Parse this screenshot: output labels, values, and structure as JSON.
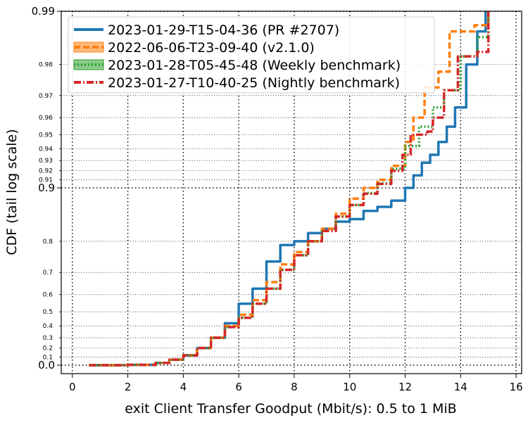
{
  "chart_data": {
    "type": "line",
    "subtype": "cdf-tail-log-scale",
    "xlabel": "exit Client Transfer Goodput (Mbit/s): 0.5 to 1 MiB",
    "ylabel": "CDF (tail log scale)",
    "xlim": [
      -0.4,
      16.2
    ],
    "x_ticks": [
      0,
      2,
      4,
      6,
      8,
      10,
      12,
      14,
      16
    ],
    "y_scale": "tail-log",
    "ylim": [
      -0.02,
      0.99
    ],
    "y_major_ticks": [
      {
        "value": 0.0,
        "label": "0.0"
      },
      {
        "value": 0.9,
        "label": "0.9"
      },
      {
        "value": 0.99,
        "label": "0.99"
      }
    ],
    "y_minor_ticks": [
      {
        "value": 0.1,
        "label": "0.1"
      },
      {
        "value": 0.2,
        "label": "0.2"
      },
      {
        "value": 0.3,
        "label": "0.3"
      },
      {
        "value": 0.4,
        "label": "0.4"
      },
      {
        "value": 0.5,
        "label": "0.5"
      },
      {
        "value": 0.6,
        "label": "0.6"
      },
      {
        "value": 0.7,
        "label": "0.7"
      },
      {
        "value": 0.8,
        "label": "0.8"
      },
      {
        "value": 0.91,
        "label": "0.91"
      },
      {
        "value": 0.92,
        "label": "0.92"
      },
      {
        "value": 0.93,
        "label": "0.93"
      },
      {
        "value": 0.94,
        "label": "0.94"
      },
      {
        "value": 0.95,
        "label": "0.95"
      },
      {
        "value": 0.96,
        "label": "0.96"
      },
      {
        "value": 0.97,
        "label": "0.97"
      },
      {
        "value": 0.98,
        "label": "0.98"
      }
    ],
    "grid": true,
    "legend_position": "top-left",
    "series": [
      {
        "name": "2023-01-29-T15-04-36 (PR #2707)",
        "color": "#1f77b4",
        "style": "solid",
        "points": [
          [
            0.6,
            0.0
          ],
          [
            2.0,
            0.005
          ],
          [
            3.0,
            0.03
          ],
          [
            3.5,
            0.07
          ],
          [
            4.0,
            0.12
          ],
          [
            4.5,
            0.2
          ],
          [
            5.0,
            0.3
          ],
          [
            5.5,
            0.42
          ],
          [
            6.0,
            0.55
          ],
          [
            6.5,
            0.63
          ],
          [
            7.0,
            0.74
          ],
          [
            7.5,
            0.79
          ],
          [
            8.0,
            0.8
          ],
          [
            8.5,
            0.82
          ],
          [
            9.0,
            0.83
          ],
          [
            9.5,
            0.845
          ],
          [
            10.0,
            0.85
          ],
          [
            10.5,
            0.865
          ],
          [
            11.0,
            0.872
          ],
          [
            11.5,
            0.882
          ],
          [
            12.0,
            0.9
          ],
          [
            12.3,
            0.915
          ],
          [
            12.6,
            0.928
          ],
          [
            12.9,
            0.935
          ],
          [
            13.2,
            0.945
          ],
          [
            13.5,
            0.955
          ],
          [
            13.8,
            0.965
          ],
          [
            14.2,
            0.98
          ],
          [
            14.6,
            0.987
          ],
          [
            14.9,
            0.99
          ]
        ]
      },
      {
        "name": "2022-06-06-T23-09-40 (v2.1.0)",
        "color": "#ff7f0e",
        "style": "dashed",
        "points": [
          [
            0.6,
            0.0
          ],
          [
            2.0,
            0.005
          ],
          [
            3.0,
            0.03
          ],
          [
            3.5,
            0.07
          ],
          [
            4.0,
            0.12
          ],
          [
            4.5,
            0.2
          ],
          [
            5.0,
            0.3
          ],
          [
            5.5,
            0.4
          ],
          [
            6.0,
            0.48
          ],
          [
            6.5,
            0.57
          ],
          [
            7.0,
            0.66
          ],
          [
            7.5,
            0.73
          ],
          [
            8.0,
            0.77
          ],
          [
            8.5,
            0.8
          ],
          [
            9.0,
            0.83
          ],
          [
            9.5,
            0.86
          ],
          [
            10.0,
            0.885
          ],
          [
            10.5,
            0.9
          ],
          [
            11.0,
            0.91
          ],
          [
            11.5,
            0.925
          ],
          [
            12.0,
            0.945
          ],
          [
            12.3,
            0.96
          ],
          [
            12.7,
            0.973
          ],
          [
            13.2,
            0.978
          ],
          [
            13.6,
            0.987
          ],
          [
            14.5,
            0.988
          ],
          [
            15.0,
            0.99
          ]
        ]
      },
      {
        "name": "2023-01-28-T05-45-48 (Weekly benchmark)",
        "color": "#2ca02c",
        "style": "dotted",
        "points": [
          [
            0.6,
            0.0
          ],
          [
            2.0,
            0.005
          ],
          [
            3.0,
            0.03
          ],
          [
            3.5,
            0.07
          ],
          [
            4.0,
            0.12
          ],
          [
            4.5,
            0.2
          ],
          [
            5.0,
            0.3
          ],
          [
            5.5,
            0.39
          ],
          [
            6.0,
            0.46
          ],
          [
            6.5,
            0.55
          ],
          [
            7.0,
            0.63
          ],
          [
            7.5,
            0.71
          ],
          [
            8.0,
            0.76
          ],
          [
            8.5,
            0.8
          ],
          [
            9.0,
            0.825
          ],
          [
            9.5,
            0.855
          ],
          [
            10.0,
            0.875
          ],
          [
            10.5,
            0.893
          ],
          [
            11.0,
            0.906
          ],
          [
            11.5,
            0.922
          ],
          [
            12.0,
            0.942
          ],
          [
            12.5,
            0.955
          ],
          [
            13.0,
            0.965
          ],
          [
            13.4,
            0.972
          ],
          [
            14.0,
            0.982
          ],
          [
            14.6,
            0.986
          ],
          [
            15.0,
            0.99
          ]
        ]
      },
      {
        "name": "2023-01-27-T10-40-25 (Nightly benchmark)",
        "color": "#d62728",
        "style": "dashdot",
        "points": [
          [
            0.6,
            0.0
          ],
          [
            2.0,
            0.005
          ],
          [
            3.0,
            0.03
          ],
          [
            3.5,
            0.07
          ],
          [
            4.0,
            0.12
          ],
          [
            4.5,
            0.2
          ],
          [
            5.0,
            0.3
          ],
          [
            5.5,
            0.39
          ],
          [
            6.0,
            0.46
          ],
          [
            6.5,
            0.55
          ],
          [
            7.0,
            0.63
          ],
          [
            7.5,
            0.71
          ],
          [
            8.0,
            0.76
          ],
          [
            8.5,
            0.8
          ],
          [
            9.0,
            0.825
          ],
          [
            9.5,
            0.855
          ],
          [
            10.0,
            0.875
          ],
          [
            10.5,
            0.892
          ],
          [
            11.0,
            0.905
          ],
          [
            11.5,
            0.92
          ],
          [
            11.9,
            0.935
          ],
          [
            12.2,
            0.95
          ],
          [
            12.8,
            0.952
          ],
          [
            13.0,
            0.96
          ],
          [
            13.4,
            0.972
          ],
          [
            13.9,
            0.982
          ],
          [
            14.6,
            0.983
          ],
          [
            15.0,
            0.99
          ]
        ]
      }
    ]
  }
}
